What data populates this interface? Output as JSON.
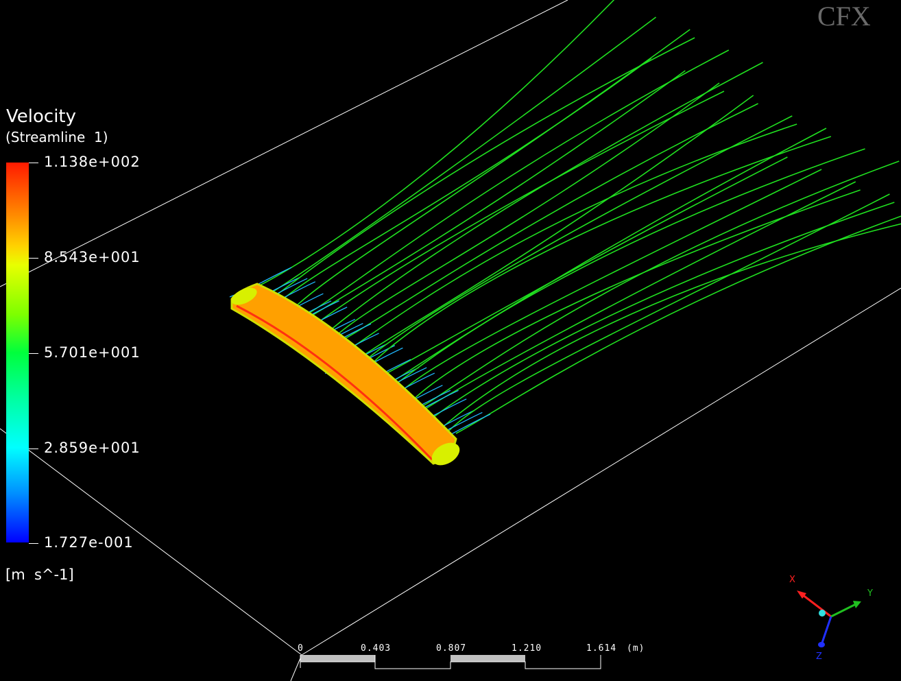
{
  "legend": {
    "title": "Velocity",
    "subtitle": "(Streamline  1)",
    "labels": [
      "1.138e+002",
      "8.543e+001",
      "5.701e+001",
      "2.859e+001",
      "1.727e-001"
    ],
    "unit": "[m  s^-1]",
    "colors": {
      "max": "#ff1a00",
      "high": "#ffd200",
      "mid": "#00ff3c",
      "low": "#00ffff",
      "min": "#0000ff"
    }
  },
  "scale_bar": {
    "ticks": [
      "0",
      "0.403",
      "0.807",
      "1.210",
      "1.614"
    ],
    "unit": "(m)"
  },
  "triad": {
    "x_label": "X",
    "y_label": "Y",
    "z_label": "Z",
    "x_color": "#ff2020",
    "y_color": "#20c020",
    "z_color": "#2030ff"
  },
  "logo": {
    "text": "CFX"
  },
  "scene": {
    "streamline_color": "#20e020",
    "wing_color": "#ffa000",
    "background": "#000000"
  }
}
